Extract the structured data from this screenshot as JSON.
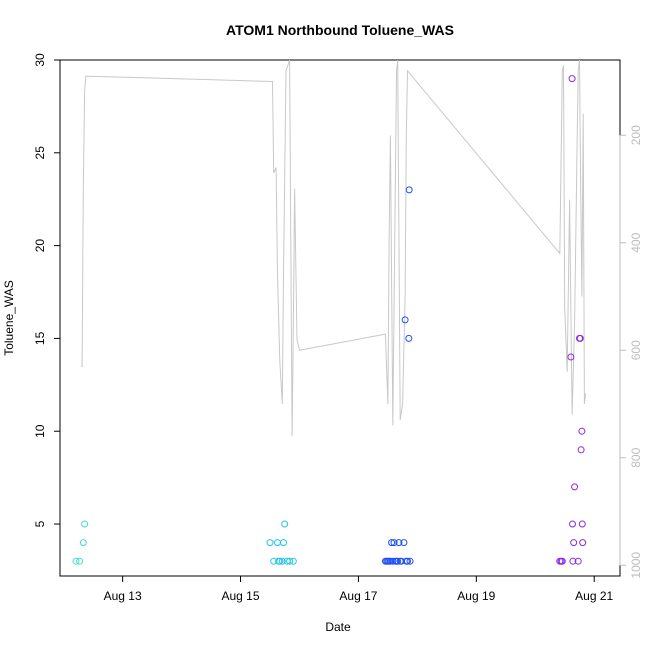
{
  "chart_data": {
    "type": "scatter",
    "title": "ATOM1 Northbound Toluene_WAS",
    "xlabel": "Date",
    "ylabel": "Toluene_WAS",
    "xlim": [
      "2016-08-11T22:30",
      "2016-08-21T10:30"
    ],
    "ylim": [
      2.2,
      30
    ],
    "x_ticks": [
      {
        "label": "Aug 13",
        "value": "2016-08-13T00:00"
      },
      {
        "label": "Aug 15",
        "value": "2016-08-15T00:00"
      },
      {
        "label": "Aug 17",
        "value": "2016-08-17T00:00"
      },
      {
        "label": "Aug 19",
        "value": "2016-08-19T00:00"
      },
      {
        "label": "Aug 21",
        "value": "2016-08-21T00:00"
      }
    ],
    "y_ticks": [
      5,
      10,
      15,
      20,
      25,
      30
    ],
    "right_axis": {
      "ticks": [
        200,
        400,
        600,
        800,
        1000
      ],
      "ylim": [
        60,
        1020
      ],
      "color": "#bdbdbd"
    },
    "line_color": "#c8c8c8",
    "line_series": [
      [
        "2016-08-12T07:00",
        630
      ],
      [
        "2016-08-12T07:30",
        630
      ],
      [
        "2016-08-12T08:00",
        300
      ],
      [
        "2016-08-12T08:30",
        120
      ],
      [
        "2016-08-12T09:00",
        90
      ],
      [
        "2016-08-15T13:00",
        100
      ],
      [
        "2016-08-15T13:30",
        270
      ],
      [
        "2016-08-15T14:30",
        260
      ],
      [
        "2016-08-15T15:00",
        450
      ],
      [
        "2016-08-15T16:00",
        620
      ],
      [
        "2016-08-15T17:00",
        700
      ],
      [
        "2016-08-15T17:30",
        460
      ],
      [
        "2016-08-15T18:30",
        80
      ],
      [
        "2016-08-15T20:00",
        50
      ],
      [
        "2016-08-15T21:00",
        760
      ],
      [
        "2016-08-15T21:30",
        560
      ],
      [
        "2016-08-15T22:00",
        300
      ],
      [
        "2016-08-15T23:00",
        580
      ],
      [
        "2016-08-16T00:00",
        600
      ],
      [
        "2016-08-17T11:00",
        570
      ],
      [
        "2016-08-17T12:00",
        700
      ],
      [
        "2016-08-17T12:30",
        400
      ],
      [
        "2016-08-17T13:00",
        200
      ],
      [
        "2016-08-17T14:00",
        740
      ],
      [
        "2016-08-17T15:00",
        300
      ],
      [
        "2016-08-17T15:30",
        80
      ],
      [
        "2016-08-17T16:00",
        60
      ],
      [
        "2016-08-17T17:00",
        730
      ],
      [
        "2016-08-17T18:00",
        700
      ],
      [
        "2016-08-17T19:00",
        500
      ],
      [
        "2016-08-17T19:30",
        200
      ],
      [
        "2016-08-17T20:00",
        80
      ],
      [
        "2016-08-20T10:00",
        420
      ],
      [
        "2016-08-20T11:00",
        80
      ],
      [
        "2016-08-20T11:30",
        70
      ],
      [
        "2016-08-20T12:00",
        520
      ],
      [
        "2016-08-20T13:00",
        640
      ],
      [
        "2016-08-20T14:00",
        320
      ],
      [
        "2016-08-20T15:00",
        720
      ],
      [
        "2016-08-20T16:00",
        550
      ],
      [
        "2016-08-20T17:00",
        230
      ],
      [
        "2016-08-20T17:30",
        80
      ],
      [
        "2016-08-20T18:00",
        60
      ],
      [
        "2016-08-20T18:30",
        300
      ],
      [
        "2016-08-20T19:00",
        500
      ],
      [
        "2016-08-20T19:30",
        160
      ],
      [
        "2016-08-20T20:00",
        700
      ],
      [
        "2016-08-20T20:30",
        680
      ]
    ],
    "series": [
      {
        "color": "#40e0c8",
        "points": [
          [
            "2016-08-12T05:00",
            3
          ],
          [
            "2016-08-12T06:30",
            3
          ],
          [
            "2016-08-12T08:00",
            4
          ],
          [
            "2016-08-12T08:30",
            5
          ]
        ]
      },
      {
        "color": "#20c8e0",
        "points": [
          [
            "2016-08-15T12:00",
            4
          ],
          [
            "2016-08-15T13:30",
            3
          ],
          [
            "2016-08-15T15:00",
            4
          ],
          [
            "2016-08-15T15:30",
            3
          ],
          [
            "2016-08-15T16:00",
            3
          ],
          [
            "2016-08-15T17:00",
            3
          ],
          [
            "2016-08-15T17:30",
            4
          ],
          [
            "2016-08-15T18:00",
            5
          ],
          [
            "2016-08-15T19:00",
            3
          ],
          [
            "2016-08-15T20:00",
            3
          ],
          [
            "2016-08-15T21:30",
            3
          ]
        ]
      },
      {
        "color": "#2050ee",
        "points": [
          [
            "2016-08-17T11:00",
            3
          ],
          [
            "2016-08-17T11:30",
            3
          ],
          [
            "2016-08-17T12:00",
            3
          ],
          [
            "2016-08-17T12:30",
            3
          ],
          [
            "2016-08-17T13:00",
            3
          ],
          [
            "2016-08-17T13:30",
            4
          ],
          [
            "2016-08-17T14:00",
            3
          ],
          [
            "2016-08-17T14:30",
            4
          ],
          [
            "2016-08-17T15:00",
            3
          ],
          [
            "2016-08-17T15:30",
            3
          ],
          [
            "2016-08-17T16:00",
            3
          ],
          [
            "2016-08-17T16:30",
            4
          ],
          [
            "2016-08-17T17:00",
            3
          ],
          [
            "2016-08-17T17:30",
            3
          ],
          [
            "2016-08-17T18:30",
            4
          ],
          [
            "2016-08-17T19:00",
            16
          ],
          [
            "2016-08-17T19:30",
            3
          ],
          [
            "2016-08-17T20:00",
            3
          ],
          [
            "2016-08-17T20:30",
            15
          ],
          [
            "2016-08-17T20:40",
            23
          ],
          [
            "2016-08-17T21:00",
            3
          ]
        ]
      },
      {
        "color": "#8a2be2",
        "points": [
          [
            "2016-08-20T10:00",
            3
          ],
          [
            "2016-08-20T10:30",
            3
          ],
          [
            "2016-08-20T11:00",
            3
          ],
          [
            "2016-08-20T14:30",
            14
          ],
          [
            "2016-08-20T15:00",
            29
          ],
          [
            "2016-08-20T15:10",
            5
          ],
          [
            "2016-08-20T15:20",
            3
          ],
          [
            "2016-08-20T15:40",
            4
          ],
          [
            "2016-08-20T16:00",
            7
          ],
          [
            "2016-08-20T17:30",
            3
          ],
          [
            "2016-08-20T18:00",
            15
          ],
          [
            "2016-08-20T18:20",
            15
          ],
          [
            "2016-08-20T18:40",
            9
          ],
          [
            "2016-08-20T19:00",
            10
          ],
          [
            "2016-08-20T19:10",
            5
          ],
          [
            "2016-08-20T19:20",
            4
          ]
        ]
      }
    ]
  }
}
